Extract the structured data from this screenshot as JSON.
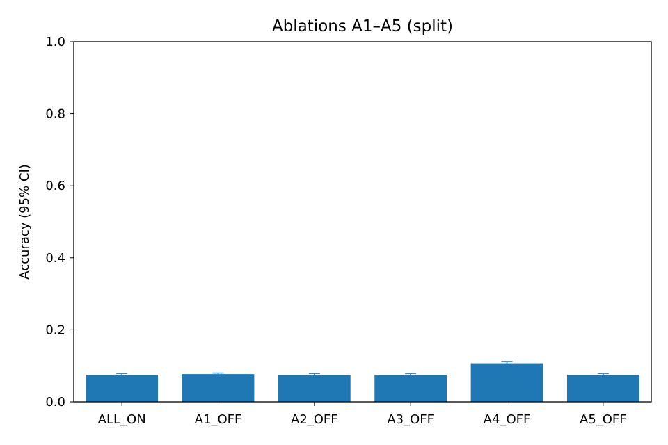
{
  "chart_data": {
    "type": "bar",
    "title": "Ablations A1–A5 (split)",
    "xlabel": "",
    "ylabel": "Accuracy (95% CI)",
    "categories": [
      "ALL_ON",
      "A1_OFF",
      "A2_OFF",
      "A3_OFF",
      "A4_OFF",
      "A5_OFF"
    ],
    "values": [
      0.075,
      0.077,
      0.075,
      0.075,
      0.107,
      0.075
    ],
    "ci_upper": [
      0.079,
      0.08,
      0.079,
      0.079,
      0.112,
      0.079
    ],
    "ci_lower": [
      0.075,
      0.077,
      0.075,
      0.075,
      0.107,
      0.075
    ],
    "ylim": [
      0,
      1.0
    ],
    "yticks": [
      "0.0",
      "0.2",
      "0.4",
      "0.6",
      "0.8",
      "1.0"
    ],
    "ytick_values": [
      0,
      0.2,
      0.4,
      0.6,
      0.8,
      1.0
    ],
    "grid": false,
    "legend": "none",
    "bar_color": "#1f77b4",
    "errorbar_color": "#1f77b4"
  }
}
